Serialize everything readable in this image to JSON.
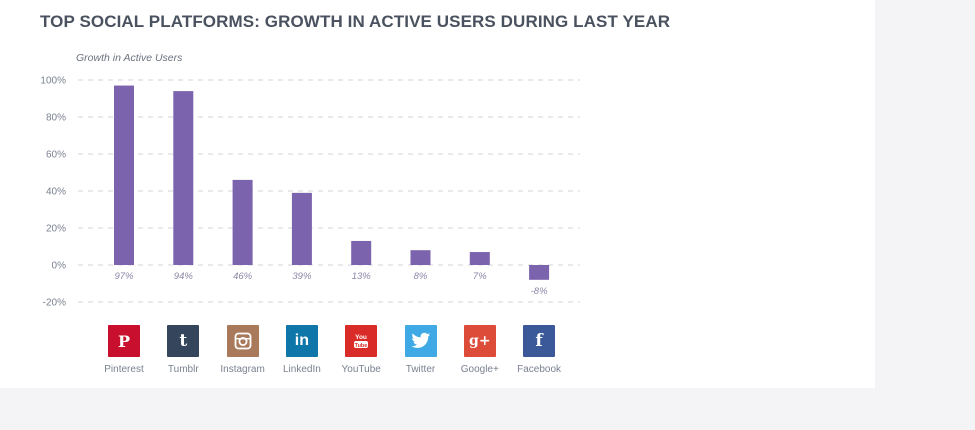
{
  "chart_data": {
    "type": "bar",
    "title": "TOP SOCIAL PLATFORMS: GROWTH IN ACTIVE USERS DURING LAST YEAR",
    "ylabel": "Growth in Active Users",
    "xlabel": "",
    "categories": [
      "Pinterest",
      "Tumblr",
      "Instagram",
      "LinkedIn",
      "YouTube",
      "Twitter",
      "Google+",
      "Facebook"
    ],
    "values": [
      97,
      94,
      46,
      39,
      13,
      8,
      7,
      -8
    ],
    "value_labels": [
      "97%",
      "94%",
      "46%",
      "39%",
      "13%",
      "8%",
      "7%",
      "-8%"
    ],
    "ylim": [
      -20,
      100
    ],
    "yticks": [
      100,
      80,
      60,
      40,
      20,
      0,
      -20
    ],
    "ytick_labels": [
      "100%",
      "80%",
      "60%",
      "40%",
      "20%",
      "0%",
      "-20%"
    ],
    "grid": true,
    "bar_color": "#7b64ad"
  },
  "platforms": [
    {
      "name": "Pinterest",
      "icon": "pinterest-icon",
      "glyph": "P",
      "color": "#c8102e"
    },
    {
      "name": "Tumblr",
      "icon": "tumblr-icon",
      "glyph": "t",
      "color": "#35465c"
    },
    {
      "name": "Instagram",
      "icon": "instagram-icon",
      "glyph": "",
      "color": "#a8795a"
    },
    {
      "name": "LinkedIn",
      "icon": "linkedin-icon",
      "glyph": "in",
      "color": "#0e76a8"
    },
    {
      "name": "YouTube",
      "icon": "youtube-icon",
      "glyph": "",
      "color": "#d92b27"
    },
    {
      "name": "Twitter",
      "icon": "twitter-icon",
      "glyph": "",
      "color": "#3fa9e6"
    },
    {
      "name": "Google+",
      "icon": "google-plus-icon",
      "glyph": "g+",
      "color": "#dd4b39"
    },
    {
      "name": "Facebook",
      "icon": "facebook-icon",
      "glyph": "f",
      "color": "#3b5998"
    }
  ]
}
